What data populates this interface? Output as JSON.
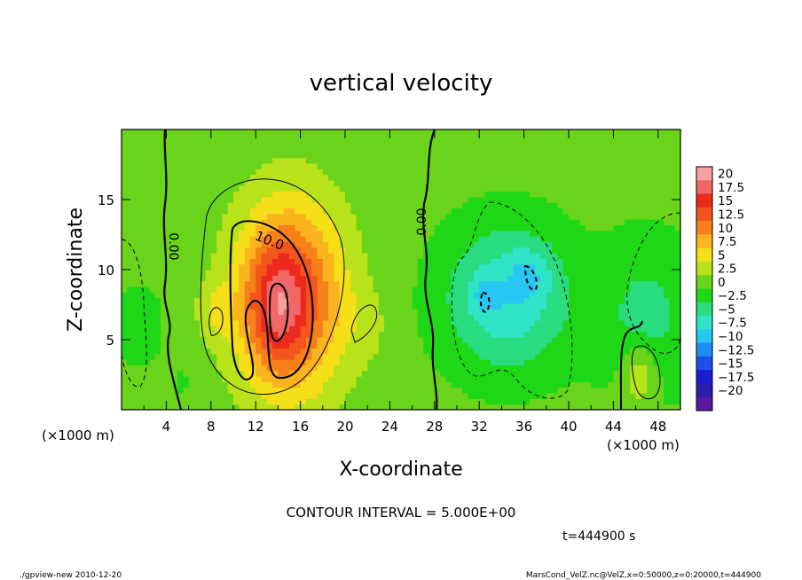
{
  "chart_data": {
    "type": "heatmap",
    "title": "vertical velocity",
    "xlabel": "X-coordinate",
    "ylabel": "Z-coordinate",
    "x_unit_label": "(×1000 m)",
    "y_unit_label": "(×1000 m)",
    "x_ticks": [
      "4",
      "8",
      "12",
      "16",
      "20",
      "24",
      "28",
      "32",
      "36",
      "40",
      "44",
      "48"
    ],
    "y_ticks": [
      "5",
      "10",
      "15"
    ],
    "xlim": [
      0,
      50
    ],
    "ylim": [
      0,
      20
    ],
    "grid": false,
    "contour_interval_text": "CONTOUR INTERVAL = 5.000E+00",
    "contour_labels": [
      "0.00",
      "10.0",
      "0.00"
    ],
    "time_text": "t=444900 s",
    "colorbar": {
      "labels": [
        "20",
        "17.5",
        "15",
        "12.5",
        "10",
        "7.5",
        "5",
        "2.5",
        "0",
        "-2.5",
        "-5",
        "-7.5",
        "-10",
        "-12.5",
        "-15",
        "-17.5",
        "-20"
      ],
      "colors": [
        "#f8a0a0",
        "#f26868",
        "#ec2a1e",
        "#f2561c",
        "#f7801a",
        "#fbb41e",
        "#f5df18",
        "#b8e21a",
        "#6ad41a",
        "#1ed818",
        "#2adc80",
        "#30e4c8",
        "#28c6f2",
        "#1c8ef2",
        "#1c50e8",
        "#1a1cd4",
        "#2c1ca8",
        "#5a18a4"
      ]
    },
    "fields": [
      {
        "x": 15,
        "y": 8,
        "sx": 3.4,
        "sy": 4.8,
        "amp": 14
      },
      {
        "x": 13.8,
        "y": 7.2,
        "sx": 1.6,
        "sy": 3.0,
        "amp": 5
      },
      {
        "x": 8.5,
        "y": 7,
        "sx": 1.2,
        "sy": 1.4,
        "amp": 3
      },
      {
        "x": 22,
        "y": 6,
        "sx": 1.5,
        "sy": 2.0,
        "amp": 1.5
      },
      {
        "x": 34.5,
        "y": 8,
        "sx": 4.0,
        "sy": 3.6,
        "amp": -7.5
      },
      {
        "x": 36.5,
        "y": 9.8,
        "sx": 1.3,
        "sy": 1.3,
        "amp": -3
      },
      {
        "x": 32.5,
        "y": 8.2,
        "sx": 0.9,
        "sy": 0.9,
        "amp": -3
      },
      {
        "x": 47,
        "y": 6.5,
        "sx": 3.0,
        "sy": 4.0,
        "amp": -4
      },
      {
        "x": 1.5,
        "y": 6,
        "sx": 1.5,
        "sy": 2.0,
        "amp": -2.5
      },
      {
        "x": 46.3,
        "y": 2.5,
        "sx": 1.2,
        "sy": 1.6,
        "amp": 5
      },
      {
        "x": 5.5,
        "y": 2,
        "sx": 1.0,
        "sy": 2.0,
        "amp": -1
      }
    ]
  },
  "footer": {
    "left": "./gpview-new   2010-12-20",
    "right": "MarsCond_VelZ.nc@VelZ,x=0:50000,z=0:20000,t=444900"
  }
}
